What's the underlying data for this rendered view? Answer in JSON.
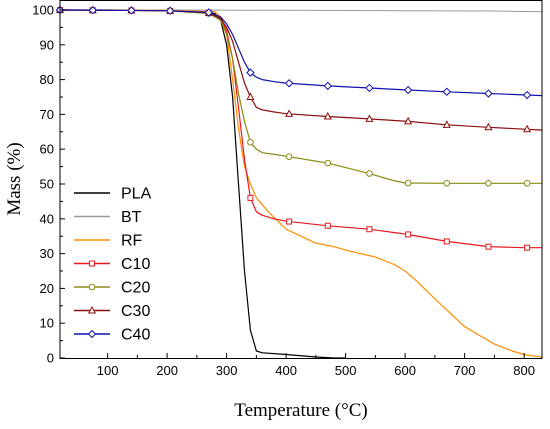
{
  "chart_data": {
    "type": "line",
    "title": "",
    "xlabel": "Temperature (°C)",
    "ylabel": "Mass (%)",
    "xlim": [
      20,
      830
    ],
    "ylim": [
      0,
      100
    ],
    "xticks": [
      100,
      200,
      300,
      400,
      500,
      600,
      700,
      800
    ],
    "yticks": [
      0,
      10,
      20,
      30,
      40,
      50,
      60,
      70,
      80,
      90,
      100
    ],
    "grid": false,
    "legend_position": "bottom-left",
    "series": [
      {
        "name": "PLA",
        "color": "#000000",
        "marker": "none",
        "x": [
          20,
          100,
          200,
          260,
          280,
          290,
          300,
          310,
          320,
          330,
          340,
          350,
          360,
          400,
          450,
          480,
          500
        ],
        "y": [
          100,
          100,
          99.8,
          99.5,
          99,
          97,
          90,
          75,
          50,
          25,
          8,
          2,
          1.5,
          1,
          0.3,
          0,
          0
        ],
        "markers_x": []
      },
      {
        "name": "BT",
        "color": "#999999",
        "marker": "none",
        "x": [
          20,
          200,
          400,
          600,
          750,
          830
        ],
        "y": [
          100,
          100,
          99.9,
          99.8,
          99.7,
          99.5
        ],
        "markers_x": []
      },
      {
        "name": "RF",
        "color": "#ff8c00",
        "marker": "none",
        "x": [
          20,
          200,
          280,
          290,
          300,
          310,
          320,
          330,
          340,
          350,
          370,
          400,
          450,
          480,
          500,
          550,
          580,
          600,
          620,
          650,
          700,
          750,
          780,
          800,
          820,
          830
        ],
        "y": [
          100,
          99.9,
          99.5,
          98,
          93,
          80,
          66,
          55,
          50,
          46,
          42,
          37,
          33,
          32,
          31,
          29,
          27,
          25,
          22,
          17,
          9,
          4,
          2,
          1,
          0.5,
          0.3
        ],
        "markers_x": []
      },
      {
        "name": "C10",
        "color": "#e8191f",
        "marker": "square",
        "x": [
          20,
          200,
          270,
          290,
          300,
          310,
          320,
          330,
          340,
          350,
          360,
          380,
          400,
          470,
          540,
          605,
          670,
          740,
          800,
          830
        ],
        "y": [
          100,
          99.8,
          99.2,
          98,
          94,
          86,
          72,
          57,
          46,
          42,
          41,
          40,
          39.3,
          38,
          37,
          35.5,
          33.5,
          32,
          31.7,
          31.7
        ],
        "markers_x": [
          20,
          75,
          140,
          205,
          270,
          340,
          405,
          470,
          540,
          605,
          670,
          740,
          805
        ]
      },
      {
        "name": "C20",
        "color": "#8b8b13",
        "marker": "circle",
        "x": [
          20,
          200,
          270,
          290,
          300,
          310,
          320,
          330,
          340,
          350,
          360,
          380,
          400,
          470,
          540,
          580,
          600,
          670,
          740,
          830
        ],
        "y": [
          100,
          99.8,
          99,
          97,
          93,
          86,
          76,
          68,
          62,
          60,
          59,
          58.5,
          58,
          56,
          53,
          51,
          50.3,
          50.2,
          50.2,
          50.2
        ],
        "markers_x": [
          20,
          75,
          140,
          205,
          270,
          340,
          405,
          470,
          540,
          605,
          670,
          740,
          805
        ]
      },
      {
        "name": "C30",
        "color": "#8b0f0f",
        "marker": "triangle",
        "x": [
          20,
          200,
          270,
          290,
          300,
          310,
          320,
          330,
          340,
          350,
          360,
          380,
          400,
          470,
          540,
          605,
          670,
          740,
          830
        ],
        "y": [
          100,
          99.8,
          99.2,
          97.5,
          95,
          91,
          85,
          79,
          75,
          72,
          71.3,
          70.7,
          70.2,
          69.4,
          68.7,
          68,
          67,
          66.3,
          65.5
        ],
        "markers_x": [
          20,
          75,
          140,
          205,
          270,
          340,
          405,
          470,
          540,
          605,
          670,
          740,
          805
        ]
      },
      {
        "name": "C40",
        "color": "#1111aa",
        "marker": "diamond",
        "x": [
          20,
          200,
          270,
          290,
          300,
          310,
          320,
          330,
          340,
          350,
          360,
          380,
          400,
          470,
          540,
          605,
          670,
          740,
          830
        ],
        "y": [
          100,
          99.8,
          99.3,
          98,
          96,
          93,
          89,
          85,
          82,
          80.7,
          80,
          79.4,
          79,
          78.2,
          77.6,
          77,
          76.5,
          76,
          75.4
        ],
        "markers_x": [
          20,
          75,
          140,
          205,
          270,
          340,
          405,
          470,
          540,
          605,
          670,
          740,
          805
        ]
      }
    ]
  }
}
